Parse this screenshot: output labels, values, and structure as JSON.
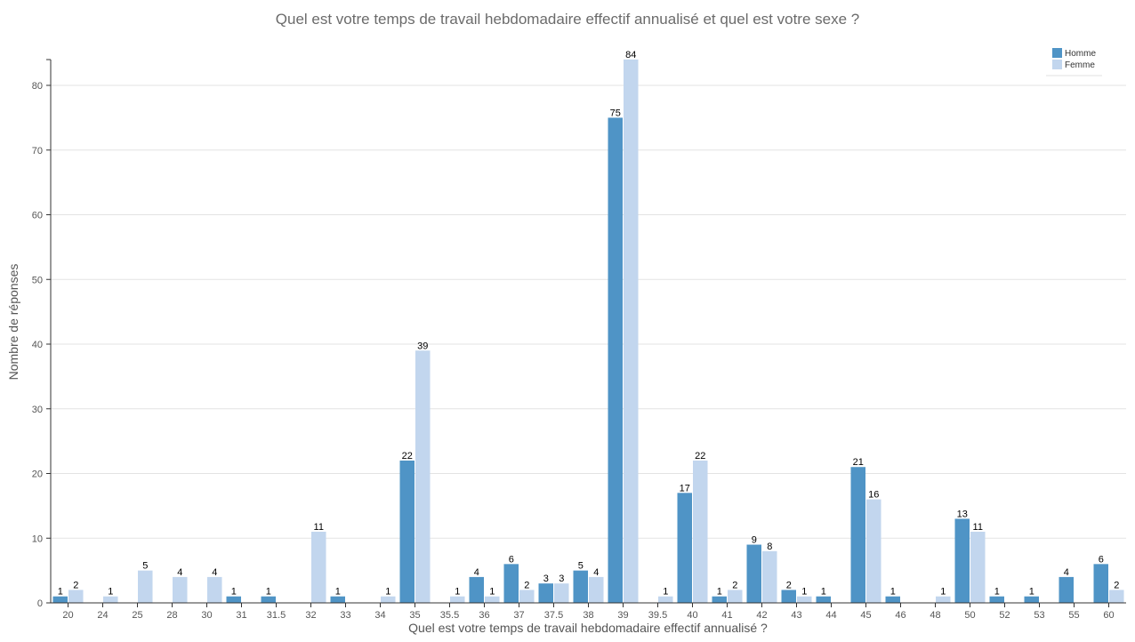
{
  "colors": {
    "homme": "#4f94c6",
    "femme": "#c2d6ee"
  },
  "chart_data": {
    "type": "bar",
    "title": "Quel est votre temps de travail hebdomadaire effectif annualisé et quel est votre sexe ?",
    "xlabel": "Quel est votre temps de travail hebdomadaire effectif annualisé ?",
    "ylabel": "Nombre de réponses",
    "ylim": [
      0,
      84
    ],
    "yticks": [
      0,
      10,
      20,
      30,
      40,
      50,
      60,
      70,
      80
    ],
    "grid": true,
    "legend_position": "top-right",
    "categories": [
      "20",
      "24",
      "25",
      "28",
      "30",
      "31",
      "31.5",
      "32",
      "33",
      "34",
      "35",
      "35.5",
      "36",
      "37",
      "37.5",
      "38",
      "39",
      "39.5",
      "40",
      "41",
      "42",
      "43",
      "44",
      "45",
      "46",
      "48",
      "50",
      "52",
      "53",
      "55",
      "60"
    ],
    "series": [
      {
        "name": "Homme",
        "values": [
          1,
          0,
          0,
          0,
          0,
          1,
          1,
          0,
          1,
          0,
          22,
          0,
          4,
          6,
          3,
          5,
          75,
          0,
          17,
          1,
          9,
          2,
          1,
          21,
          1,
          0,
          13,
          1,
          1,
          4,
          6
        ]
      },
      {
        "name": "Femme",
        "values": [
          2,
          1,
          5,
          4,
          4,
          0,
          0,
          11,
          0,
          1,
          39,
          1,
          1,
          2,
          3,
          4,
          84,
          1,
          22,
          2,
          8,
          1,
          0,
          16,
          0,
          1,
          11,
          0,
          0,
          0,
          2
        ]
      }
    ]
  }
}
